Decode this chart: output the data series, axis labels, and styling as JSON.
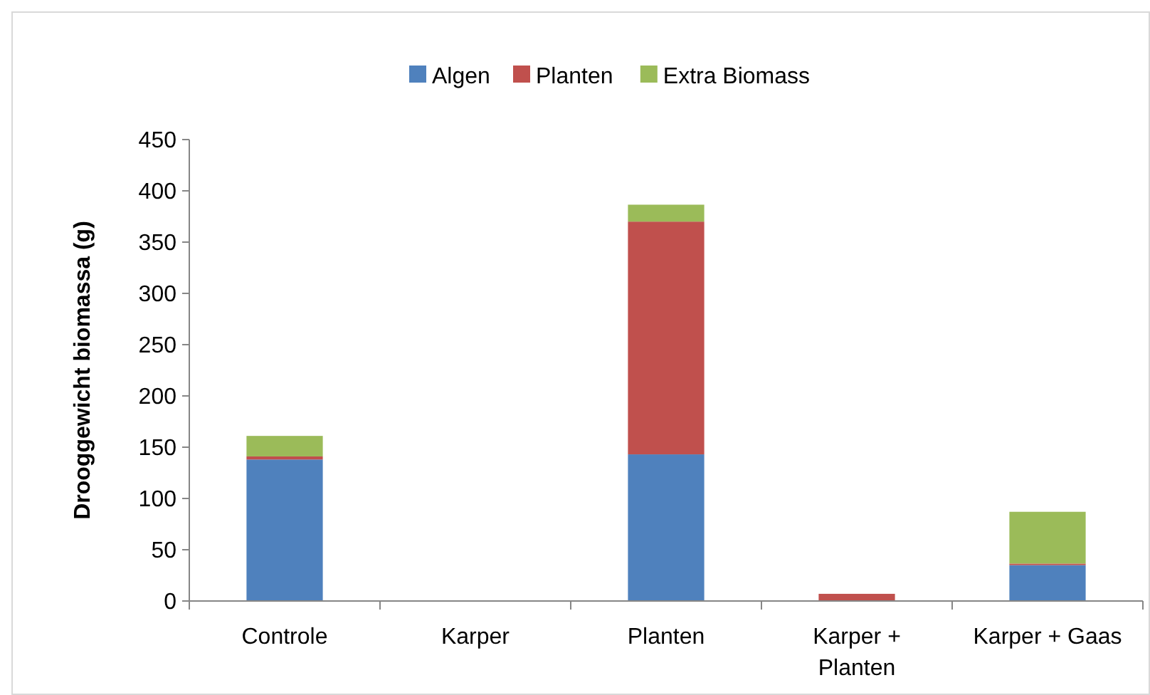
{
  "chart_data": {
    "type": "bar",
    "stacked": true,
    "ylabel": "Drooggewicht biomassa (g)",
    "categories": [
      "Controle",
      "Karper",
      "Planten",
      "Karper + Planten",
      "Karper + Gaas"
    ],
    "series": [
      {
        "name": "Algen",
        "color": "#4f81bd",
        "values": [
          138,
          0,
          143,
          0,
          35
        ]
      },
      {
        "name": "Planten",
        "color": "#c0504d",
        "values": [
          3,
          0,
          227,
          7,
          1.5
        ]
      },
      {
        "name": "Extra Biomass",
        "color": "#9bbb59",
        "values": [
          20,
          0,
          16.5,
          0,
          50.5
        ]
      }
    ],
    "ylim": [
      0,
      450
    ],
    "yticks": [
      0,
      50,
      100,
      150,
      200,
      250,
      300,
      350,
      400,
      450
    ],
    "grid": false,
    "legend": "top"
  }
}
